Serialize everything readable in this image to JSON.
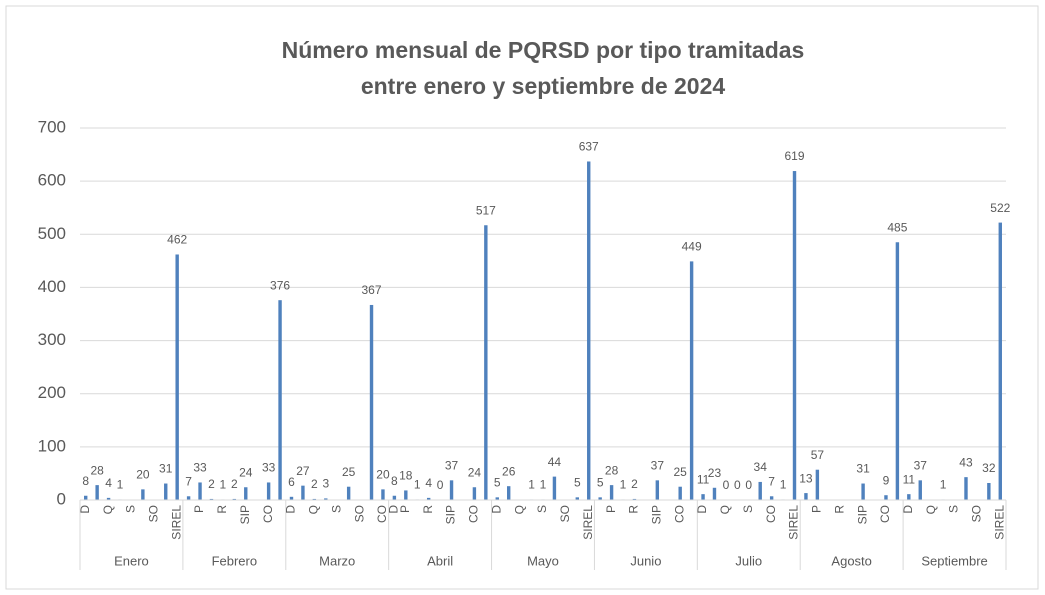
{
  "chart_data": {
    "type": "bar",
    "title": [
      "Número mensual de PQRSD por tipo tramitadas",
      "entre enero y septiembre de 2024"
    ],
    "groups": [
      "Enero",
      "Febrero",
      "Marzo",
      "Abril",
      "Mayo",
      "Junio",
      "Julio",
      "Agosto",
      "Septiembre"
    ],
    "categories": [
      "D",
      null,
      "Q",
      null,
      "S",
      null,
      "SO",
      null,
      "SIREL",
      null,
      "P",
      null,
      "R",
      null,
      "SIP",
      null,
      "CO",
      null,
      "D",
      null,
      "Q",
      null,
      "S",
      null,
      "SO",
      null,
      "CO",
      "D",
      "P",
      null,
      "R",
      null,
      "SIP",
      null,
      "CO",
      null,
      "D",
      null,
      "Q",
      null,
      "S",
      null,
      "SO",
      null,
      "SIREL",
      null,
      "P",
      null,
      "R",
      null,
      "SIP",
      null,
      "CO",
      null,
      "D",
      null,
      "Q",
      null,
      "S",
      null,
      "CO",
      null,
      "SIREL",
      null,
      "P",
      null,
      "R",
      null,
      "SIP",
      null,
      "CO",
      null,
      "D",
      null,
      "Q",
      null,
      "S",
      null,
      "SO",
      null,
      "SIREL"
    ],
    "values": [
      8,
      28,
      4,
      1,
      null,
      20,
      null,
      31,
      462,
      7,
      33,
      2,
      1,
      2,
      24,
      null,
      33,
      376,
      6,
      27,
      2,
      3,
      null,
      25,
      null,
      367,
      20,
      8,
      18,
      1,
      4,
      0,
      37,
      null,
      24,
      517,
      5,
      26,
      null,
      1,
      1,
      44,
      null,
      5,
      637,
      5,
      28,
      1,
      2,
      null,
      37,
      null,
      25,
      449,
      11,
      23,
      0,
      0,
      0,
      34,
      7,
      1,
      619,
      13,
      57,
      null,
      null,
      null,
      31,
      null,
      9,
      485,
      11,
      37,
      null,
      1,
      null,
      43,
      null,
      32,
      522
    ],
    "color": "#4f81bd",
    "ylim": [
      0,
      700
    ],
    "yticks": [
      0,
      100,
      200,
      300,
      400,
      500,
      600,
      700
    ],
    "grid": true
  }
}
